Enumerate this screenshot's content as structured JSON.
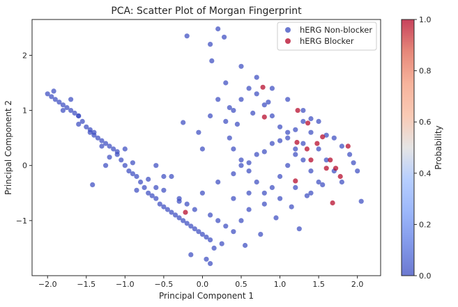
{
  "chart_data": {
    "type": "scatter",
    "title": "PCA: Scatter Plot of Morgan Fingerprint",
    "xlabel": "Principal Component 1",
    "ylabel": "Principal Component 2",
    "xlim": [
      -2.2,
      2.3
    ],
    "ylim": [
      -2.0,
      2.65
    ],
    "xticks": [
      -2.0,
      -1.5,
      -1.0,
      -0.5,
      0.0,
      0.5,
      1.0,
      1.5,
      2.0
    ],
    "xtick_labels": [
      "−2.0",
      "−1.5",
      "−1.0",
      "−0.5",
      "0.0",
      "0.5",
      "1.0",
      "1.5",
      "2.0"
    ],
    "yticks": [
      -1,
      0,
      1,
      2
    ],
    "ytick_labels": [
      "−1",
      "0",
      "1",
      "2"
    ],
    "grid": false,
    "legend_position": "top-right",
    "colorbar": {
      "label": "Probability",
      "range": [
        0.0,
        1.0
      ],
      "ticks": [
        0.0,
        0.2,
        0.4,
        0.6,
        0.8,
        1.0
      ],
      "tick_labels": [
        "0.0",
        "0.2",
        "0.4",
        "0.6",
        "0.8",
        "1.0"
      ],
      "colormap": "coolwarm"
    },
    "series": [
      {
        "name": "hERG Non-blocker",
        "color": "#3b4cc0",
        "x": [
          -2.0,
          -1.95,
          -1.9,
          -1.85,
          -1.8,
          -1.92,
          -1.75,
          -1.7,
          -1.65,
          -1.6,
          -1.7,
          -1.55,
          -1.5,
          -1.45,
          -1.4,
          -1.6,
          -1.35,
          -1.3,
          -1.25,
          -1.2,
          -1.15,
          -1.45,
          -1.1,
          -1.05,
          -1.0,
          -0.95,
          -0.9,
          -1.2,
          -0.85,
          -0.8,
          -0.75,
          -0.7,
          -0.65,
          -0.6,
          -0.55,
          -0.5,
          -0.45,
          -0.4,
          -0.35,
          -0.3,
          -0.25,
          -0.2,
          -0.15,
          -0.1,
          -0.05,
          0.0,
          0.05,
          0.1,
          -0.6,
          -0.5,
          -0.3,
          -0.2,
          -0.1,
          0.0,
          0.1,
          0.2,
          0.3,
          0.4,
          0.5,
          0.6,
          0.0,
          -0.05,
          0.1,
          0.2,
          0.3,
          0.5,
          0.7,
          0.9,
          1.1,
          1.3,
          1.5,
          1.7,
          1.9,
          2.0,
          0.35,
          0.4,
          0.5,
          0.6,
          0.7,
          0.8,
          0.9,
          1.0,
          1.1,
          1.2,
          1.3,
          1.4,
          1.5,
          1.6,
          1.7,
          1.8,
          0.3,
          0.4,
          0.5,
          0.6,
          0.7,
          0.8,
          0.9,
          1.0,
          1.1,
          1.2,
          1.3,
          1.4,
          1.5,
          0.4,
          0.6,
          0.8,
          1.0,
          1.2,
          1.4,
          0.5,
          0.7,
          0.9,
          1.1,
          1.3,
          0.2,
          0.1,
          -0.2,
          0.12,
          0.28,
          0.35,
          -1.8,
          -1.6,
          -1.4,
          -1.3,
          -1.1,
          -0.9,
          -0.7,
          -0.5,
          -0.3,
          0.2,
          0.4,
          0.6,
          0.8,
          1.0,
          1.2,
          1.4,
          1.6,
          1.8,
          2.05,
          1.95,
          1.25,
          0.55,
          0.75,
          0.95,
          1.15,
          1.35,
          1.55,
          0.45,
          0.65,
          0.85,
          -0.15,
          0.05,
          0.15,
          0.25,
          -1.0,
          -0.6,
          -0.4,
          0.1,
          -0.25,
          -1.42,
          -1.25,
          -0.85
        ],
        "y": [
          1.3,
          1.25,
          1.2,
          1.15,
          1.1,
          1.35,
          1.05,
          1.0,
          0.95,
          0.9,
          1.2,
          0.8,
          0.7,
          0.6,
          0.55,
          0.75,
          0.5,
          0.45,
          0.4,
          0.35,
          0.3,
          0.65,
          0.2,
          0.1,
          0.0,
          -0.1,
          -0.15,
          0.15,
          -0.2,
          -0.3,
          -0.4,
          -0.5,
          -0.55,
          -0.6,
          -0.7,
          -0.75,
          -0.8,
          -0.85,
          -0.9,
          -0.95,
          -1.0,
          -1.05,
          -1.1,
          -1.15,
          -1.2,
          -1.25,
          -1.3,
          -1.35,
          -0.4,
          -0.2,
          -0.6,
          -0.7,
          -0.8,
          -0.5,
          -0.9,
          -1.0,
          -1.1,
          -1.2,
          -1.0,
          -0.8,
          0.3,
          0.6,
          0.9,
          1.2,
          1.5,
          1.8,
          1.6,
          1.4,
          1.2,
          1.0,
          0.8,
          0.5,
          0.2,
          -0.1,
          0.5,
          0.3,
          0.1,
          -0.1,
          -0.3,
          -0.5,
          -0.4,
          -0.2,
          0.0,
          0.2,
          0.4,
          0.6,
          0.3,
          0.1,
          -0.1,
          -0.3,
          0.8,
          1.0,
          1.2,
          1.4,
          1.3,
          1.1,
          0.9,
          0.7,
          0.5,
          0.3,
          0.1,
          -0.1,
          -0.3,
          -0.6,
          -0.5,
          -0.7,
          -0.6,
          -0.4,
          -0.5,
          0.0,
          0.2,
          0.4,
          0.6,
          0.8,
          2.48,
          2.2,
          2.35,
          1.9,
          2.33,
          1.05,
          1.0,
          0.9,
          0.6,
          0.35,
          0.25,
          0.05,
          -0.25,
          -0.45,
          -0.65,
          -0.3,
          -0.15,
          0.05,
          0.25,
          0.45,
          0.65,
          0.85,
          0.55,
          0.35,
          -0.65,
          0.05,
          -1.15,
          -1.45,
          -1.25,
          -0.95,
          -0.75,
          -0.55,
          -0.35,
          0.75,
          0.95,
          1.15,
          -1.62,
          -1.7,
          -1.5,
          -1.42,
          0.3,
          0.0,
          -0.2,
          -1.78,
          0.78,
          -0.35,
          0.0,
          -0.45
        ]
      },
      {
        "name": "hERG Blocker",
        "color": "#b40426",
        "x": [
          0.78,
          0.8,
          1.23,
          1.36,
          1.22,
          1.35,
          1.48,
          1.55,
          1.2,
          1.65,
          1.72,
          1.78,
          1.88,
          1.6,
          1.4,
          1.68,
          -0.22
        ],
        "y": [
          1.42,
          0.88,
          1.0,
          0.77,
          0.42,
          0.3,
          0.4,
          0.52,
          -0.28,
          0.1,
          -0.05,
          -0.2,
          0.35,
          -0.05,
          0.1,
          -0.68,
          -0.85
        ]
      }
    ]
  }
}
